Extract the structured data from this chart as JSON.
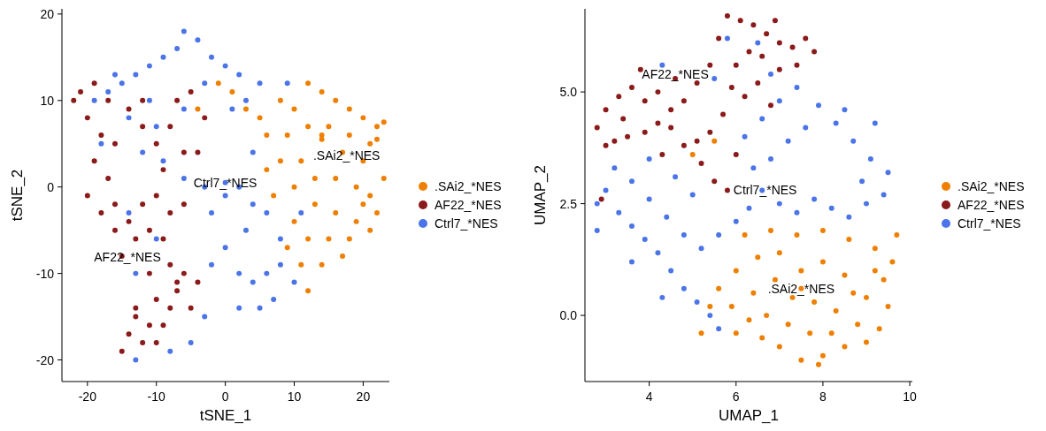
{
  "chart_data": [
    {
      "type": "scatter",
      "xlabel": "tSNE_1",
      "ylabel": "tSNE_2",
      "xlim": [
        -23.7,
        23.8
      ],
      "ylim": [
        -22.5,
        20.6
      ],
      "xticks": [
        -20,
        -10,
        0,
        10,
        20
      ],
      "yticks": [
        -20,
        -10,
        0,
        10,
        20
      ],
      "grid": false,
      "legend": "right",
      "marker": "circle",
      "annotations": [
        {
          "text": ".SAi2_*NES",
          "x": 17.6,
          "y": 3.6
        },
        {
          "text": "Ctrl7_*NES",
          "x": 0,
          "y": 0.5
        },
        {
          "text": "AF22_*NES",
          "x": -14.2,
          "y": -8.1
        }
      ],
      "series": [
        {
          "name": ".SAi2_*NES",
          "color": "#ef7f00",
          "x": [
            12,
            14,
            16,
            18,
            20,
            22,
            23,
            10,
            8,
            5,
            6,
            9,
            12,
            15,
            18,
            21,
            22,
            20,
            17,
            14,
            11,
            8,
            10,
            13,
            16,
            19,
            21,
            22,
            19,
            16,
            13,
            10,
            12,
            15,
            18,
            21,
            9,
            11,
            14,
            12,
            7,
            6,
            -1,
            1,
            -4,
            3,
            17,
            20,
            23,
            14
          ],
          "values": [
            12,
            11,
            10,
            9,
            8,
            7,
            7.5,
            9,
            10,
            8,
            6,
            6,
            7,
            7,
            6,
            5,
            5.5,
            3,
            4,
            5.5,
            3,
            3,
            0,
            1,
            1,
            0,
            -1,
            -3,
            -4,
            -3,
            -2,
            -4,
            -6,
            -6,
            -6,
            -5,
            -7,
            -9,
            -9,
            -12,
            -1,
            2,
            12,
            11,
            9,
            9,
            -8,
            -2,
            1,
            6
          ]
        },
        {
          "name": "AF22_*NES",
          "color": "#8b1a1a",
          "x": [
            -21,
            -19,
            -17,
            -20,
            -18,
            -16,
            -19,
            -17,
            -20,
            -18,
            -16,
            -14,
            -12,
            -10,
            -8,
            -6,
            -11,
            -13,
            -9,
            -15,
            -11,
            -8,
            -6,
            -4,
            -7,
            -10,
            -13,
            -11,
            -9,
            -14,
            -12,
            -10,
            -13,
            -5,
            -8,
            -10,
            -8,
            -6,
            -4,
            -7,
            -5,
            -3,
            -12,
            -14,
            -16,
            -15,
            -7,
            -12,
            -22,
            -9
          ],
          "values": [
            11,
            12,
            10,
            8,
            6,
            5,
            3,
            1,
            -1,
            -3,
            -2,
            -4,
            -2,
            -1,
            -3,
            -2,
            -5,
            -6,
            -6,
            -8,
            -10,
            -9,
            -10,
            -11,
            -12,
            -13,
            -14,
            -16,
            -16,
            -17,
            -18,
            -18,
            -15,
            -14,
            -14,
            5,
            7,
            4,
            4,
            10,
            11,
            8,
            7,
            9,
            -5,
            -19,
            -11,
            10,
            10,
            2
          ]
        },
        {
          "name": "Ctrl7_*NES",
          "color": "#4a74e8",
          "x": [
            -19,
            -17,
            -15,
            -13,
            -11,
            -9,
            -7,
            -6,
            -4,
            -2,
            0,
            2,
            -3,
            1,
            3,
            5,
            -11,
            -14,
            -10,
            -12,
            -9,
            -6,
            -3,
            0,
            2,
            4,
            6,
            3,
            0,
            -2,
            2,
            4,
            6,
            8,
            10,
            7,
            5,
            2,
            -3,
            -5,
            -8,
            -13,
            -13,
            -10,
            -2,
            -6,
            -16,
            8,
            11,
            -14,
            -18,
            4,
            9,
            0
          ],
          "values": [
            10,
            11,
            12,
            13,
            14,
            15,
            16,
            18,
            17,
            15,
            14,
            13,
            12,
            9,
            10,
            12,
            10,
            8,
            7,
            4,
            3,
            1,
            0,
            -1,
            0,
            -2,
            -3,
            -5,
            -7,
            -9,
            -10,
            -11,
            -10,
            -9,
            -11,
            -13,
            -14,
            -14,
            -15,
            -18,
            -19,
            -20,
            -10,
            -6,
            -3,
            9,
            13,
            -6,
            -3,
            -3,
            5,
            4,
            12,
            0.5
          ]
        }
      ]
    },
    {
      "type": "scatter",
      "xlabel": "UMAP_1",
      "ylabel": "UMAP_2",
      "xlim": [
        2.52,
        10.06
      ],
      "ylim": [
        -1.48,
        6.86
      ],
      "xticks": [
        4,
        6,
        8,
        10
      ],
      "yticks": [
        {
          "value": 0,
          "label": "0.0"
        },
        {
          "value": 2.5,
          "label": "2.5"
        },
        {
          "value": 5,
          "label": "5.0"
        }
      ],
      "grid": false,
      "legend": "right",
      "marker": "circle",
      "annotations": [
        {
          "text": "AF22_*NES",
          "x": 4.6,
          "y": 5.4
        },
        {
          "text": "Ctrl7_*NES",
          "x": 6.67,
          "y": 2.8
        },
        {
          "text": ".SAi2_*NES",
          "x": 7.5,
          "y": 0.6
        }
      ],
      "series": [
        {
          "name": ".SAi2_*NES",
          "color": "#ef7f00",
          "x": [
            6.2,
            6.8,
            7.4,
            8,
            8.6,
            9.2,
            9.6,
            9.7,
            9.4,
            9.0,
            8.5,
            8.0,
            7.5,
            7.0,
            6.5,
            6.0,
            5.6,
            5.9,
            6.4,
            6.9,
            7.3,
            7.8,
            8.3,
            8.8,
            9.3,
            9.5,
            9.0,
            8.5,
            8.0,
            7.5,
            7.0,
            6.6,
            6.3,
            6.0,
            7.2,
            7.7,
            8.2,
            8.7,
            5.4,
            5.2,
            5.0,
            5.5,
            7.9,
            6.7,
            9.2,
            7.5
          ],
          "values": [
            1.8,
            1.9,
            1.8,
            1.9,
            1.7,
            1.5,
            1.2,
            1.8,
            0.8,
            0.4,
            0.9,
            1.2,
            1.0,
            1.4,
            1.3,
            1.0,
            0.6,
            0.2,
            0.5,
            0.8,
            0.4,
            0.3,
            0.1,
            -0.2,
            -0.3,
            0.2,
            -0.6,
            -0.7,
            -0.9,
            -1.0,
            -0.7,
            -0.5,
            -0.1,
            -0.4,
            -0.2,
            -0.4,
            -0.4,
            0.5,
            0.2,
            -0.4,
            3.6,
            3.9,
            -1.1,
            0.0,
            1.0,
            0.6
          ]
        },
        {
          "name": "AF22_*NES",
          "color": "#8b1a1a",
          "x": [
            2.8,
            3.0,
            3.3,
            3.6,
            3.9,
            4.2,
            4.5,
            4.8,
            5.1,
            5.4,
            5.6,
            5.8,
            6.1,
            6.4,
            6.7,
            7.0,
            7.3,
            7.6,
            7.8,
            7.4,
            7.0,
            6.6,
            6.3,
            6.0,
            5.9,
            6.2,
            6.5,
            6.8,
            5.7,
            5.4,
            5.1,
            4.8,
            4.5,
            4.2,
            3.9,
            3.5,
            3.2,
            3.0,
            3.4,
            5.2,
            5.5,
            5.8,
            6.0,
            4.6,
            6.9,
            4.3,
            2.9,
            3.8
          ],
          "values": [
            4.2,
            4.6,
            4.9,
            5.1,
            4.8,
            5.0,
            4.6,
            4.8,
            5.2,
            5.6,
            6.2,
            6.7,
            6.6,
            6.5,
            6.3,
            6.1,
            6.0,
            6.2,
            5.9,
            5.6,
            5.5,
            5.8,
            5.9,
            5.6,
            5.1,
            4.9,
            5.2,
            4.7,
            4.5,
            4.1,
            3.9,
            3.8,
            4.2,
            4.3,
            4.1,
            4.0,
            3.9,
            3.8,
            4.4,
            3.4,
            3.0,
            2.8,
            3.6,
            5.3,
            6.6,
            3.6,
            2.6,
            5.5
          ]
        },
        {
          "name": "Ctrl7_*NES",
          "color": "#4a74e8",
          "x": [
            2.8,
            3.0,
            3.3,
            3.6,
            3.9,
            4.2,
            4.5,
            4.8,
            5.1,
            5.4,
            5.6,
            3.2,
            3.6,
            4.0,
            4.4,
            4.8,
            5.2,
            5.6,
            6.0,
            6.3,
            6.6,
            7.0,
            7.4,
            7.8,
            8.2,
            8.6,
            9.0,
            9.4,
            9.5,
            9.1,
            8.7,
            8.3,
            7.9,
            8.5,
            7.6,
            7.2,
            6.8,
            6.4,
            6.2,
            6.6,
            7.0,
            7.4,
            6.8,
            6.5,
            5.8,
            5.5,
            4.3,
            4.0,
            4.6,
            5.0,
            2.8,
            3.6,
            4.3,
            8.9,
            9.2
          ],
          "values": [
            2.5,
            2.8,
            2.3,
            2.0,
            1.7,
            1.4,
            1.0,
            0.6,
            0.3,
            0.0,
            -0.3,
            3.3,
            3.0,
            2.6,
            2.2,
            1.8,
            1.5,
            1.8,
            2.1,
            2.4,
            2.8,
            2.5,
            2.3,
            2.6,
            2.4,
            2.2,
            2.5,
            2.7,
            3.2,
            3.5,
            3.9,
            4.3,
            4.7,
            4.6,
            4.2,
            3.9,
            3.5,
            3.3,
            4.0,
            4.4,
            4.8,
            5.1,
            5.4,
            6.1,
            6.2,
            5.3,
            5.6,
            3.5,
            3.1,
            2.7,
            1.9,
            1.2,
            0.4,
            3.0,
            4.3
          ]
        }
      ]
    }
  ]
}
